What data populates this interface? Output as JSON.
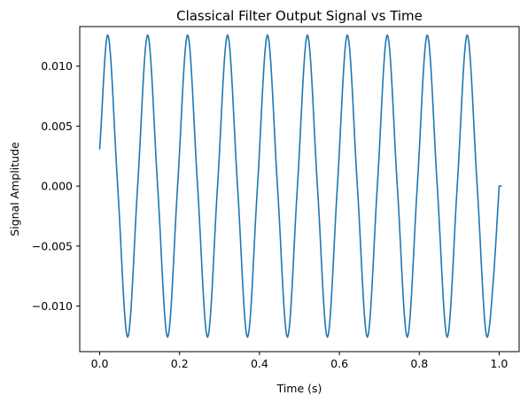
{
  "chart_data": {
    "type": "line",
    "title": "Classical Filter Output Signal vs Time",
    "xlabel": "Time (s)",
    "ylabel": "Signal Amplitude",
    "xlim": [
      -0.05,
      1.05
    ],
    "ylim": [
      -0.0138,
      0.0133
    ],
    "x_ticks": [
      0.0,
      0.2,
      0.4,
      0.6,
      0.8,
      1.0
    ],
    "x_tick_labels": [
      "0.0",
      "0.2",
      "0.4",
      "0.6",
      "0.8",
      "1.0"
    ],
    "y_ticks": [
      -0.01,
      -0.005,
      0.0,
      0.005,
      0.01
    ],
    "y_tick_labels": [
      "−0.010",
      "−0.005",
      "0.000",
      "0.005",
      "0.010"
    ],
    "grid": false,
    "legend": "none",
    "series": [
      {
        "color": "#1f77b4",
        "x": [
          0.0,
          0.02,
          0.045,
          0.07,
          0.095,
          0.12,
          0.145,
          0.17,
          0.195,
          0.22,
          0.245,
          0.27,
          0.295,
          0.32,
          0.345,
          0.37,
          0.395,
          0.42,
          0.445,
          0.47,
          0.495,
          0.52,
          0.545,
          0.57,
          0.595,
          0.62,
          0.645,
          0.67,
          0.695,
          0.72,
          0.745,
          0.77,
          0.795,
          0.82,
          0.845,
          0.87,
          0.895,
          0.92,
          0.945,
          0.97,
          0.985,
          1.0
        ],
        "y": [
          0.0031,
          0.0126,
          0.0,
          -0.0126,
          0.0,
          0.0126,
          0.0,
          -0.0126,
          0.0,
          0.0126,
          0.0,
          -0.0126,
          0.0,
          0.0126,
          0.0,
          -0.0126,
          0.0,
          0.0126,
          0.0,
          -0.0126,
          0.0,
          0.0126,
          0.0,
          -0.0126,
          0.0,
          0.0126,
          0.0,
          -0.0126,
          0.0,
          0.0126,
          0.0,
          -0.0126,
          0.0,
          0.0126,
          0.0,
          -0.0126,
          0.0,
          0.0126,
          0.0,
          -0.0126,
          -0.008,
          0.0
        ]
      }
    ]
  }
}
